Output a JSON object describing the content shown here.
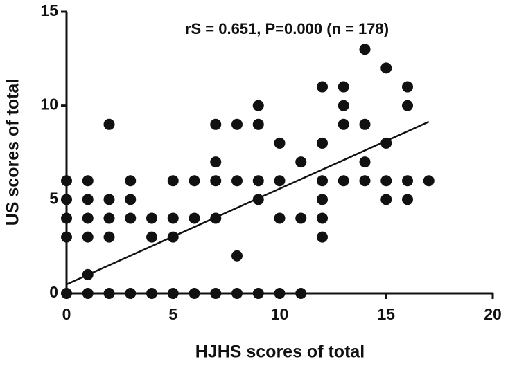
{
  "chart_data": {
    "type": "scatter",
    "annotation": "rS = 0.651, P=0.000 (n = 178)",
    "x_label": "HJHS scores of total",
    "y_label": "US scores of total",
    "x": [
      0,
      0,
      0,
      0,
      0,
      1,
      1,
      1,
      1,
      1,
      1,
      2,
      2,
      2,
      2,
      2,
      3,
      3,
      3,
      3,
      4,
      4,
      4,
      5,
      5,
      5,
      5,
      6,
      6,
      6,
      7,
      7,
      7,
      7,
      7,
      8,
      8,
      8,
      8,
      9,
      9,
      9,
      9,
      9,
      10,
      10,
      10,
      10,
      11,
      11,
      11,
      12,
      12,
      12,
      12,
      12,
      12,
      13,
      13,
      13,
      13,
      14,
      14,
      14,
      14,
      15,
      15,
      15,
      15,
      16,
      16,
      16,
      16,
      17
    ],
    "values": [
      6,
      5,
      4,
      3,
      0,
      6,
      5,
      4,
      3,
      1,
      0,
      9,
      5,
      4,
      3,
      0,
      6,
      5,
      4,
      0,
      4,
      3,
      0,
      6,
      4,
      3,
      0,
      6,
      4,
      0,
      9,
      7,
      6,
      4,
      0,
      9,
      6,
      2,
      0,
      10,
      9,
      6,
      5,
      0,
      8,
      6,
      4,
      0,
      7,
      4,
      0,
      11,
      8,
      6,
      5,
      4,
      3,
      11,
      10,
      9,
      6,
      13,
      9,
      7,
      6,
      12,
      8,
      6,
      5,
      11,
      10,
      6,
      5,
      6
    ],
    "color": "#111111",
    "fit": {
      "x": [
        0,
        17
      ],
      "y": [
        0.48,
        9.14
      ]
    },
    "xlim": [
      0,
      20
    ],
    "xticks": [
      0,
      5,
      10,
      15,
      20
    ],
    "ylim": [
      0,
      15
    ],
    "yticks": [
      0,
      5,
      10,
      15
    ],
    "grid": false
  }
}
